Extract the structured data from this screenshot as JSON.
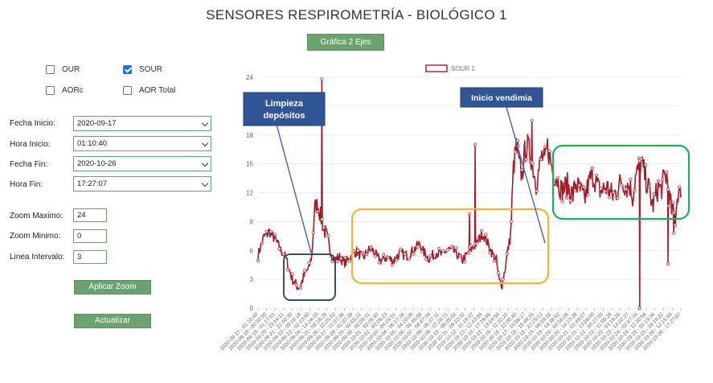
{
  "page": {
    "title": "SENSORES RESPIROMETRÍA - BIOLÓGICO 1",
    "top_button": "Gráfica 2 Ejes"
  },
  "checkboxes": [
    {
      "label": "OUR",
      "checked": false
    },
    {
      "label": "SOUR",
      "checked": true
    },
    {
      "label": "AORc",
      "checked": false
    },
    {
      "label": "AOR Total",
      "checked": false
    }
  ],
  "form": {
    "fecha_inicio": {
      "label": "Fecha Inicio:",
      "value": "2020-09-17"
    },
    "hora_inicio": {
      "label": "Hora Inicio:",
      "value": "01:10:40"
    },
    "fecha_fin": {
      "label": "Fecha Fin:",
      "value": "2020-10-26"
    },
    "hora_fin": {
      "label": "Hora Fin:",
      "value": "17:27:07"
    },
    "zoom_max": {
      "label": "Zoom Maximo:",
      "value": "24"
    },
    "zoom_min": {
      "label": "Zoom Minimo:",
      "value": "0"
    },
    "linea_intervalo": {
      "label": "Linea Intervalo:",
      "value": "3"
    },
    "apply_zoom": "Aplicar Zoom",
    "update": "Actualizar"
  },
  "annotations": {
    "limpieza": "Limpieza depósitos",
    "vendimia": "Inicio vendimia"
  },
  "colors": {
    "series": "#a51c2a",
    "accent": "#6aa36f",
    "box_blue": "#34506e",
    "box_orange": "#f2b630",
    "box_green": "#16b35a",
    "callout": "#2f5597"
  },
  "chart_data": {
    "type": "line",
    "series": [
      {
        "name": "SOUR 1"
      }
    ],
    "ylim": [
      0,
      24
    ],
    "yticks": [
      0,
      3,
      6,
      9,
      12,
      15,
      18,
      21,
      24
    ],
    "x_ticks": [
      "2020-09-17 - 01:10:40",
      "2020-09-18 - 00:50:50",
      "2020-09-19 - 01:17:01",
      "2020-09-20 - 23:14:11",
      "2020-09-21 - 22:40:30",
      "2020-09-22 - 09:18:18",
      "2020-09-23 - 02:13:00",
      "2020-09-24 - 14:24:29",
      "2020-09-25 - 08:18:29",
      "2020-09-26 - 15:25:52",
      "2020-09-27 - 21:07:36",
      "2020-09-28 - 01:07:39",
      "2020-09-29 - 02:55:22",
      "2020-09-30 - 02:05:31",
      "2020-10-01 - 02:05:50",
      "2020-10-02 - 03:05:13",
      "2020-10-03 - 04:25:51",
      "2020-10-04 - 06:17:34",
      "2020-10-05 - 04:20:08",
      "2020-10-06 - 04:45:08",
      "2020-10-07 - 04:47:39",
      "2020-10-08 - 06:37:11",
      "2020-10-09 - 07:28:11",
      "2020-10-10 - 08:35:02",
      "2020-10-11 - 09:22:32",
      "2020-10-12 - 11:19:37",
      "2020-10-13 - 12:43:09",
      "2020-10-14 - 17:19:46",
      "2020-10-15 - 19:24:50",
      "2020-10-16 - 11:32:20",
      "2020-10-16 - 22:00:40",
      "2020-10-17 - 10:56:17",
      "2020-10-18 - 15:49:25",
      "2020-10-18 - 22:25:13",
      "2020-10-19 - 06:59:55",
      "2020-10-19 - 14:38:52",
      "2020-10-20 - 02:56:28",
      "2020-10-20 - 14:23:28",
      "2020-10-21 - 01:49:07",
      "2020-10-21 - 13:56:00",
      "2020-10-22 - 00:27:03",
      "2020-10-22 - 11:50:28",
      "2020-10-23 - 03:19:25",
      "2020-10-23 - 14:02:37",
      "2020-10-24 - 02:47:16",
      "2020-10-24 - 12:30:54",
      "2020-10-25 - 02:19:34",
      "2020-10-25 - 19:19:22",
      "2020-10-26 - 12:15:59",
      "2020-10-26 - 17:27:07"
    ],
    "keypoints": [
      [
        0,
        5.5
      ],
      [
        1,
        6.5
      ],
      [
        2,
        7.4
      ],
      [
        3,
        7.6
      ],
      [
        4,
        8.0
      ],
      [
        5,
        7.5
      ],
      [
        6,
        7.2
      ],
      [
        7,
        6.6
      ],
      [
        8,
        6.0
      ],
      [
        9,
        5.7
      ],
      [
        10,
        5.0
      ],
      [
        11,
        4.0
      ],
      [
        12,
        3.1
      ],
      [
        13,
        2.6
      ],
      [
        14,
        2.2
      ],
      [
        15,
        2.3
      ],
      [
        16,
        3.2
      ],
      [
        17,
        3.8
      ],
      [
        18,
        4.2
      ],
      [
        19,
        5.6
      ],
      [
        20,
        10.5
      ],
      [
        21,
        10.8
      ],
      [
        22,
        9.6
      ],
      [
        23,
        8.4
      ],
      [
        24,
        7.6
      ],
      [
        25,
        6.5
      ],
      [
        26,
        5.5
      ],
      [
        27,
        5.0
      ],
      [
        28,
        5.2
      ],
      [
        29,
        5.3
      ],
      [
        30,
        4.8
      ],
      [
        31,
        4.8
      ],
      [
        32,
        5.1
      ],
      [
        33,
        5.5
      ],
      [
        34,
        5.8
      ],
      [
        35,
        5.9
      ],
      [
        36,
        5.5
      ],
      [
        37,
        5.2
      ],
      [
        38,
        5.6
      ],
      [
        39,
        6.0
      ],
      [
        40,
        6.2
      ],
      [
        41,
        5.7
      ],
      [
        42,
        5.3
      ],
      [
        43,
        5.0
      ],
      [
        44,
        5.0
      ],
      [
        45,
        5.3
      ],
      [
        46,
        5.2
      ],
      [
        47,
        5.0
      ],
      [
        48,
        5.0
      ],
      [
        49,
        5.4
      ],
      [
        50,
        5.7
      ],
      [
        51,
        5.6
      ],
      [
        52,
        5.5
      ],
      [
        53,
        5.5
      ],
      [
        54,
        5.8
      ],
      [
        55,
        6.1
      ],
      [
        56,
        6.4
      ],
      [
        57,
        6.7
      ],
      [
        58,
        6.0
      ],
      [
        59,
        5.6
      ],
      [
        60,
        5.2
      ],
      [
        61,
        5.3
      ],
      [
        62,
        5.6
      ],
      [
        63,
        5.8
      ],
      [
        64,
        5.7
      ],
      [
        65,
        5.5
      ],
      [
        66,
        5.9
      ],
      [
        67,
        6.1
      ],
      [
        68,
        6.0
      ],
      [
        69,
        5.9
      ],
      [
        70,
        5.7
      ],
      [
        71,
        5.2
      ],
      [
        72,
        5.0
      ],
      [
        73,
        5.3
      ],
      [
        74,
        5.7
      ],
      [
        75,
        6.1
      ],
      [
        76,
        6.4
      ],
      [
        77,
        6.8
      ],
      [
        78,
        7.2
      ],
      [
        79,
        7.7
      ],
      [
        80,
        7.4
      ],
      [
        81,
        6.7
      ],
      [
        82,
        6.0
      ],
      [
        83,
        5.4
      ],
      [
        84,
        5.0
      ],
      [
        85,
        2.8
      ],
      [
        86,
        2.5
      ],
      [
        87,
        4.0
      ],
      [
        88,
        6.0
      ],
      [
        89,
        7.5
      ],
      [
        90,
        14.5
      ],
      [
        91,
        16.8
      ],
      [
        92,
        15.0
      ],
      [
        93,
        13.8
      ],
      [
        94,
        16.2
      ],
      [
        95,
        16.9
      ],
      [
        96,
        16.0
      ],
      [
        97,
        14.5
      ],
      [
        98,
        13.0
      ],
      [
        99,
        14.4
      ],
      [
        100,
        15.8
      ],
      [
        101,
        15.2
      ],
      [
        102,
        16.8
      ],
      [
        103,
        15.4
      ],
      [
        104,
        14.0
      ],
      [
        105,
        13.8
      ],
      [
        106,
        13.0
      ],
      [
        107,
        12.2
      ],
      [
        108,
        12.5
      ],
      [
        109,
        12.8
      ],
      [
        110,
        12.1
      ],
      [
        111,
        11.8
      ],
      [
        112,
        13.0
      ],
      [
        113,
        12.4
      ],
      [
        114,
        12.0
      ],
      [
        115,
        11.2
      ],
      [
        116,
        12.4
      ],
      [
        117,
        13.4
      ],
      [
        118,
        13.8
      ],
      [
        119,
        13.2
      ],
      [
        120,
        12.4
      ],
      [
        121,
        12.2
      ],
      [
        122,
        12.4
      ],
      [
        123,
        12.6
      ],
      [
        124,
        12.0
      ],
      [
        125,
        11.7
      ],
      [
        126,
        12.0
      ],
      [
        127,
        12.6
      ],
      [
        128,
        13.2
      ],
      [
        129,
        13.0
      ],
      [
        130,
        12.6
      ],
      [
        131,
        12.8
      ],
      [
        132,
        11.6
      ],
      [
        133,
        13.5
      ],
      [
        134,
        14.4
      ],
      [
        135,
        15.2
      ],
      [
        136,
        14.2
      ],
      [
        137,
        13.0
      ],
      [
        138,
        12.1
      ],
      [
        139,
        10.6
      ],
      [
        140,
        11.5
      ],
      [
        141,
        12.6
      ],
      [
        142,
        12.3
      ],
      [
        143,
        13.4
      ],
      [
        144,
        13.8
      ],
      [
        145,
        11.2
      ],
      [
        146,
        10.0
      ],
      [
        147,
        9.4
      ],
      [
        148,
        12.2
      ],
      [
        149,
        11.5
      ]
    ],
    "spikes": [
      [
        22.5,
        23.8
      ],
      [
        76.5,
        17.0
      ],
      [
        91.5,
        17.4
      ],
      [
        96.5,
        19.5
      ],
      [
        74.5,
        9.8
      ],
      [
        134.5,
        0.0
      ],
      [
        144.5,
        4.6
      ],
      [
        146.5,
        7.8
      ]
    ]
  }
}
